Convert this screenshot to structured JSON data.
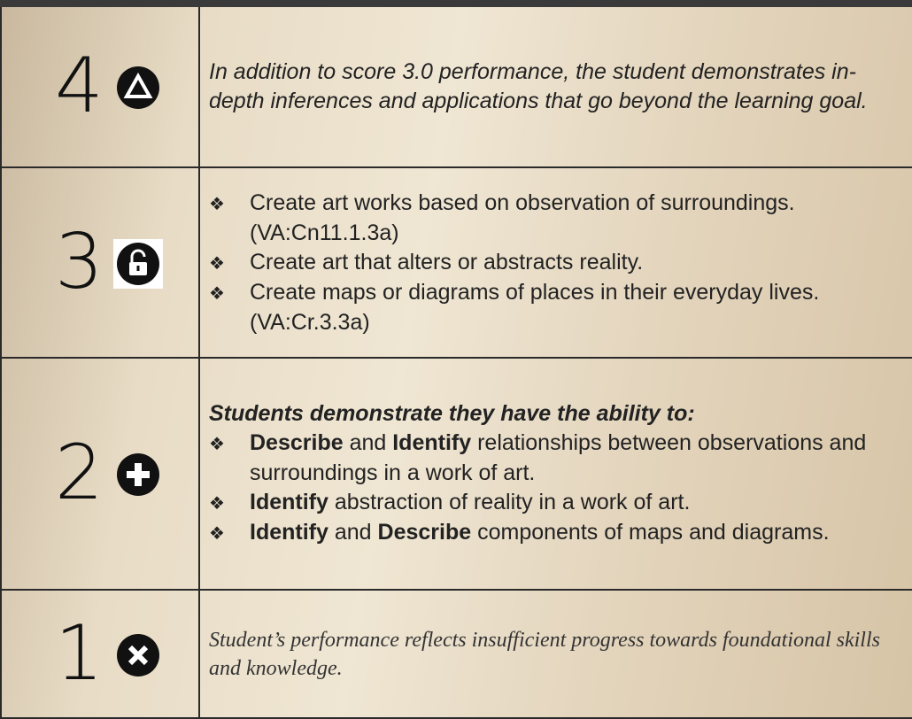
{
  "rows": [
    {
      "score": "4",
      "text": "In addition to score 3.0 performance, the student demonstrates in-depth inferences and applications that go beyond the learning goal."
    },
    {
      "score": "3",
      "items": [
        [
          {
            "text": "Create art works based on observation of surroundings. (VA:Cn11.1.3a)"
          }
        ],
        [
          {
            "text": "Create art that alters or abstracts reality."
          }
        ],
        [
          {
            "text": "Create maps or diagrams of places in their everyday lives. (VA:Cr.3.3a)"
          }
        ]
      ]
    },
    {
      "score": "2",
      "lead": "Students demonstrate they have the ability to:",
      "items": [
        [
          {
            "text": "Describe",
            "bold": true
          },
          {
            "text": " and "
          },
          {
            "text": "Identify",
            "bold": true
          },
          {
            "text": " relationships between observations and surroundings in a work of art."
          }
        ],
        [
          {
            "text": "Identify",
            "bold": true
          },
          {
            "text": " abstraction of reality in a work of art."
          }
        ],
        [
          {
            "text": "Identify",
            "bold": true
          },
          {
            "text": " and "
          },
          {
            "text": "Describe",
            "bold": true
          },
          {
            "text": " components of maps and diagrams."
          }
        ]
      ]
    },
    {
      "score": "1",
      "text": "Student’s performance reflects insufficient progress towards foundational skills and knowledge."
    }
  ]
}
